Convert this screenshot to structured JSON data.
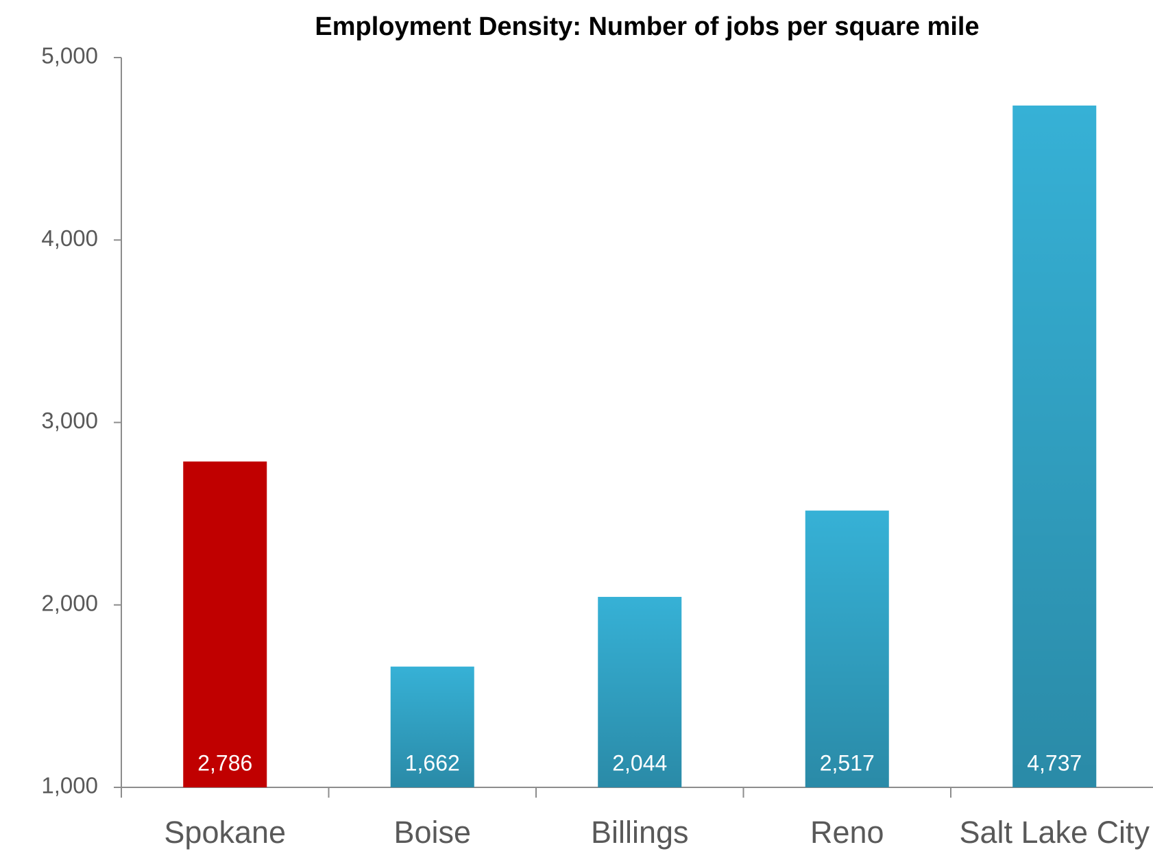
{
  "chart_data": {
    "type": "bar",
    "title": "Employment Density: Number of jobs per square mile",
    "categories": [
      "Spokane",
      "Boise",
      "Billings",
      "Reno",
      "Salt Lake City"
    ],
    "values": [
      2786,
      1662,
      2044,
      2517,
      4737
    ],
    "value_labels": [
      "2,786",
      "1,662",
      "2,044",
      "2,517",
      "4,737"
    ],
    "colors": [
      "#c00000",
      "#36b1d6",
      "#36b1d6",
      "#36b1d6",
      "#36b1d6"
    ],
    "ylim": [
      1000,
      5000
    ],
    "yticks": [
      {
        "value": 1000,
        "label": "1,000"
      },
      {
        "value": 2000,
        "label": "2,000"
      },
      {
        "value": 3000,
        "label": "3,000"
      },
      {
        "value": 4000,
        "label": "4,000"
      },
      {
        "value": 5000,
        "label": "5,000"
      }
    ],
    "grid": false
  }
}
